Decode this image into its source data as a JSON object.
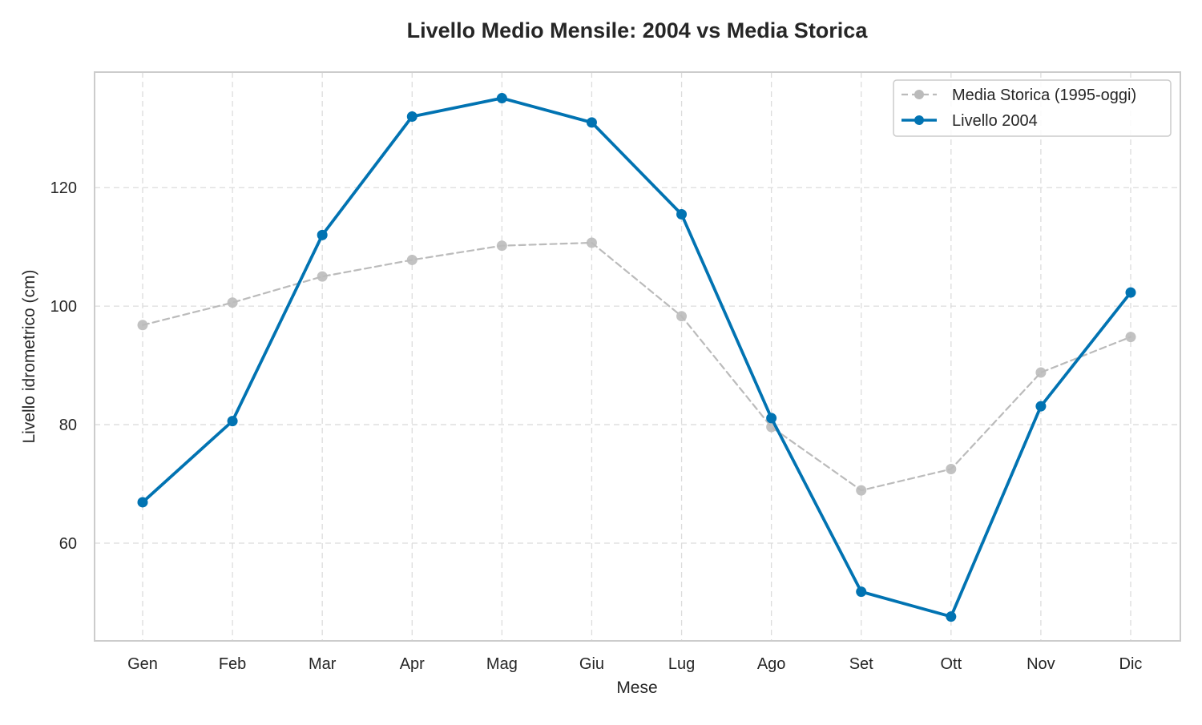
{
  "chart_data": {
    "type": "line",
    "title": "Livello Medio Mensile: 2004 vs Media Storica",
    "xlabel": "Mese",
    "ylabel": "Livello idrometrico (cm)",
    "categories": [
      "Gen",
      "Feb",
      "Mar",
      "Apr",
      "Mag",
      "Giu",
      "Lug",
      "Ago",
      "Set",
      "Ott",
      "Nov",
      "Dic"
    ],
    "ylim": [
      43.5,
      139.5
    ],
    "yticks": [
      60,
      80,
      100,
      120
    ],
    "grid": true,
    "legend_position": "top-right",
    "series": [
      {
        "name": "Media Storica (1995-oggi)",
        "style": "dashed",
        "color": "#bbbbbb",
        "values": [
          96.8,
          100.6,
          105.0,
          107.8,
          110.2,
          110.7,
          98.3,
          79.6,
          68.9,
          72.5,
          88.8,
          94.8
        ]
      },
      {
        "name": "Livello 2004",
        "style": "solid",
        "color": "#0173b2",
        "values": [
          66.9,
          80.6,
          112.0,
          132.0,
          135.1,
          131.0,
          115.5,
          81.1,
          51.8,
          47.6,
          83.1,
          102.3
        ]
      }
    ]
  }
}
